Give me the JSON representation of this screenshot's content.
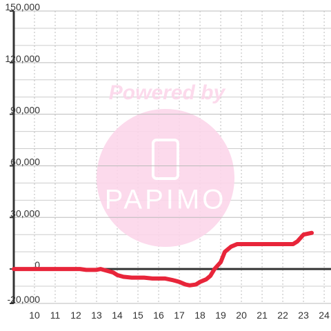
{
  "chart_data": {
    "type": "line",
    "watermark": {
      "top": "Powered by",
      "logo": "PAPIMO"
    },
    "x": [
      9,
      12.2,
      12.5,
      13,
      13.2,
      13.5,
      13.8,
      14,
      14.3,
      14.7,
      15.3,
      15.7,
      16.3,
      16.7,
      17,
      17.3,
      17.5,
      17.8,
      18,
      18.3,
      18.5,
      18.7,
      19,
      19.2,
      19.5,
      19.8,
      20,
      22.5,
      22.7,
      23,
      23.4
    ],
    "series": [
      {
        "color": "#e8253a",
        "values": [
          0,
          0,
          -500,
          -500,
          0,
          -1000,
          -2000,
          -3500,
          -4500,
          -5000,
          -5000,
          -5500,
          -5500,
          -6500,
          -7500,
          -9000,
          -9500,
          -9000,
          -7500,
          -6000,
          -4000,
          0,
          4000,
          10000,
          13000,
          14500,
          14500,
          14500,
          16000,
          20000,
          21000
        ]
      }
    ],
    "xlim": [
      9,
      24.33
    ],
    "xticks": [
      10,
      11,
      12,
      13,
      14,
      15,
      16,
      17,
      18,
      19,
      20,
      21,
      22,
      23,
      24
    ],
    "ylim": [
      -20000,
      150000
    ],
    "yticks": [
      {
        "value": -20000,
        "label": "-20,000"
      },
      {
        "value": 0,
        "label": "0"
      },
      {
        "value": 30000,
        "label": "30,000"
      },
      {
        "value": 60000,
        "label": "60,000"
      },
      {
        "value": 90000,
        "label": "90,000"
      },
      {
        "value": 120000,
        "label": "120,000"
      },
      {
        "value": 150000,
        "label": "150,000"
      }
    ],
    "minor_yticks": [
      -10000,
      10000,
      20000,
      40000,
      50000,
      70000,
      80000,
      100000,
      110000,
      130000,
      140000
    ],
    "grid": true
  }
}
